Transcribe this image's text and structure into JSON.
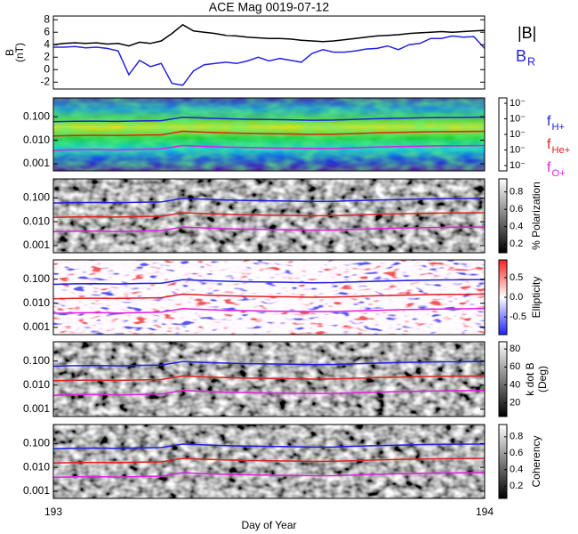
{
  "chart_data": [
    {
      "type": "line",
      "title": "ACE Mag 0019-07-12",
      "ylabel": [
        "B",
        "(nT)"
      ],
      "xlim": [
        193,
        194
      ],
      "ylim": [
        -3.1,
        8.6
      ],
      "yticks": [
        -2,
        0,
        2,
        4,
        6,
        8
      ],
      "x": [
        193.0,
        193.025,
        193.05,
        193.075,
        193.1,
        193.125,
        193.15,
        193.175,
        193.2,
        193.225,
        193.25,
        193.275,
        193.3,
        193.325,
        193.35,
        193.375,
        193.4,
        193.425,
        193.45,
        193.475,
        193.5,
        193.525,
        193.55,
        193.575,
        193.6,
        193.625,
        193.65,
        193.675,
        193.7,
        193.725,
        193.75,
        193.775,
        193.8,
        193.825,
        193.85,
        193.875,
        193.9,
        193.925,
        193.95,
        193.975,
        194.0
      ],
      "series": [
        {
          "name": "|B|",
          "color": "#000000",
          "values": [
            4.0,
            4.2,
            4.3,
            4.2,
            4.3,
            4.1,
            4.2,
            3.8,
            4.4,
            4.2,
            4.6,
            5.8,
            7.2,
            6.2,
            6.0,
            5.8,
            5.5,
            5.4,
            5.2,
            5.1,
            5.0,
            5.0,
            4.9,
            4.7,
            4.6,
            4.5,
            4.6,
            4.8,
            5.0,
            5.2,
            5.4,
            5.5,
            5.6,
            5.8,
            5.9,
            6.0,
            6.1,
            6.0,
            6.1,
            6.2,
            6.3
          ]
        },
        {
          "name": "B",
          "subscript": "R",
          "color": "#2323e0",
          "values": [
            3.6,
            3.6,
            3.7,
            3.5,
            3.6,
            3.4,
            3.0,
            -0.8,
            1.5,
            0.5,
            1.0,
            -2.2,
            -2.5,
            -0.2,
            0.8,
            1.0,
            1.2,
            1.0,
            1.4,
            2.0,
            1.4,
            1.8,
            1.5,
            1.2,
            2.6,
            3.2,
            2.8,
            2.8,
            3.0,
            3.3,
            3.4,
            3.8,
            3.2,
            4.0,
            4.2,
            5.0,
            5.0,
            5.4,
            5.2,
            5.3,
            3.4
          ]
        }
      ]
    },
    {
      "type": "spectrogram",
      "colormap": "rainbow",
      "xlim": [
        193,
        194
      ],
      "ylim": [
        0.0005,
        0.63
      ],
      "log_y": true,
      "yticks": [
        {
          "value": 0.001,
          "label": "0.001"
        },
        {
          "value": 0.01,
          "label": "0.010"
        },
        {
          "value": 0.1,
          "label": "0.100"
        }
      ],
      "colorbar_ticks": [
        "10⁻",
        "10⁻",
        "10⁻",
        "10⁻",
        "10⁻"
      ],
      "x": [
        193.0,
        193.05,
        193.1,
        193.15,
        193.2,
        193.25,
        193.3,
        193.35,
        193.4,
        193.45,
        193.5,
        193.55,
        193.6,
        193.65,
        193.7,
        193.75,
        193.8,
        193.85,
        193.9,
        193.95,
        194.0
      ],
      "series": [
        {
          "name": "f",
          "subscript": "H+",
          "color": "#2020e0",
          "values": [
            0.061,
            0.064,
            0.065,
            0.063,
            0.066,
            0.068,
            0.095,
            0.088,
            0.082,
            0.078,
            0.076,
            0.074,
            0.071,
            0.072,
            0.077,
            0.082,
            0.086,
            0.09,
            0.093,
            0.094,
            0.096
          ]
        },
        {
          "name": "f",
          "subscript": "He+",
          "color": "#e02020",
          "values": [
            0.0152,
            0.016,
            0.0162,
            0.0158,
            0.0165,
            0.017,
            0.024,
            0.022,
            0.0205,
            0.0195,
            0.019,
            0.0185,
            0.0178,
            0.018,
            0.0192,
            0.0205,
            0.0215,
            0.0225,
            0.0232,
            0.0235,
            0.024
          ]
        },
        {
          "name": "f",
          "subscript": "O+",
          "color": "#e020e0",
          "values": [
            0.0038,
            0.004,
            0.0041,
            0.0039,
            0.0041,
            0.0043,
            0.006,
            0.0055,
            0.0051,
            0.0049,
            0.0047,
            0.0046,
            0.0045,
            0.0045,
            0.0048,
            0.0051,
            0.0054,
            0.0056,
            0.0058,
            0.0059,
            0.006
          ]
        }
      ]
    },
    {
      "type": "spectrogram",
      "colormap": "gray",
      "xlim": [
        193,
        194
      ],
      "ylim": [
        0.0005,
        0.63
      ],
      "log_y": true,
      "yticks": [
        {
          "value": 0.001,
          "label": "0.001"
        },
        {
          "value": 0.01,
          "label": "0.010"
        },
        {
          "value": 0.1,
          "label": "0.100"
        }
      ],
      "colorbar_label": [
        "% Polarization"
      ],
      "clim": [
        0.1,
        0.95
      ],
      "colorbar_ticks": [
        0.2,
        0.4,
        0.6,
        0.8
      ]
    },
    {
      "type": "spectrogram",
      "colormap": "bwr",
      "xlim": [
        193,
        194
      ],
      "ylim": [
        0.0005,
        0.63
      ],
      "log_y": true,
      "yticks": [
        {
          "value": 0.001,
          "label": "0.001"
        },
        {
          "value": 0.01,
          "label": "0.010"
        },
        {
          "value": 0.1,
          "label": "0.100"
        }
      ],
      "colorbar_label": [
        "Ellipticity"
      ],
      "clim": [
        -0.95,
        0.95
      ],
      "colorbar_ticks": [
        -0.5,
        {
          "value": 0,
          "label": "0.0"
        },
        0.5
      ]
    },
    {
      "type": "spectrogram",
      "colormap": "gray",
      "xlim": [
        193,
        194
      ],
      "ylim": [
        0.0005,
        0.63
      ],
      "log_y": true,
      "yticks": [
        {
          "value": 0.001,
          "label": "0.001"
        },
        {
          "value": 0.01,
          "label": "0.010"
        },
        {
          "value": 0.1,
          "label": "0.100"
        }
      ],
      "colorbar_label": [
        "k dot B",
        "(Deg)"
      ],
      "clim": [
        5,
        88
      ],
      "colorbar_ticks": [
        20,
        40,
        60,
        80
      ]
    },
    {
      "type": "spectrogram",
      "colormap": "gray",
      "xlim": [
        193,
        194
      ],
      "ylim": [
        0.0005,
        0.63
      ],
      "log_y": true,
      "yticks": [
        {
          "value": 0.001,
          "label": "0.001"
        },
        {
          "value": 0.01,
          "label": "0.010"
        },
        {
          "value": 0.1,
          "label": "0.100"
        }
      ],
      "colorbar_label": [
        "Coherency"
      ],
      "clim": [
        0.05,
        0.95
      ],
      "colorbar_ticks": [
        0.2,
        0.4,
        0.6,
        0.8
      ],
      "xticks": [
        193,
        194
      ],
      "xlabel": "Day of Year"
    }
  ]
}
